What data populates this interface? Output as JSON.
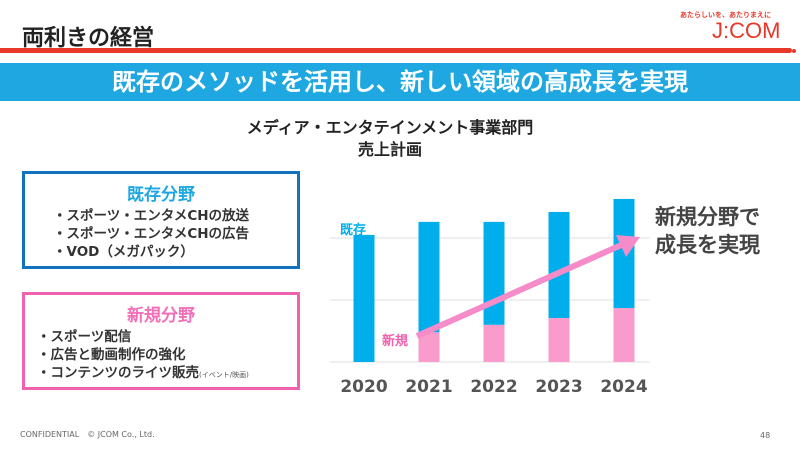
{
  "header": {
    "title": "両利きの経営",
    "tagline": "あたらしいを、あたりまえに",
    "logo": "J:COM"
  },
  "banner": "既存のメソッドを活用し、新しい領域の高成長を実現",
  "chart_title": [
    "メディア・エンタテインメント事業部門",
    "売上計画"
  ],
  "existing_box": {
    "heading": "既存分野",
    "items": [
      "・スポーツ・エンタメCHの放送",
      "・スポーツ・エンタメCHの広告",
      "・VOD（メガパック）"
    ]
  },
  "new_box": {
    "heading": "新規分野",
    "items": [
      "・スポーツ配信",
      "・広告と動画制作の強化",
      "・コンテンツのライツ販売"
    ],
    "note": "(イベント/映画)"
  },
  "callout": [
    "新規分野で",
    "成長を実現"
  ],
  "chart_data": {
    "type": "bar",
    "stacked": true,
    "title": "売上計画",
    "categories": [
      "2020",
      "2021",
      "2022",
      "2023",
      "2024"
    ],
    "series": [
      {
        "name": "新規",
        "label": "新規",
        "color": "#f99ccc",
        "values": [
          0,
          0.48,
          0.6,
          0.71,
          0.87
        ]
      },
      {
        "name": "既存",
        "label": "既存",
        "color": "#00aeeb",
        "values": [
          2.05,
          1.78,
          1.66,
          1.71,
          1.76
        ]
      }
    ],
    "ylim": [
      0,
      2.8
    ],
    "grid": true,
    "ylabel": "",
    "xlabel": ""
  },
  "footer": "CONFIDENTIAL　© JCOM Co., Ltd.",
  "page_number": "48"
}
